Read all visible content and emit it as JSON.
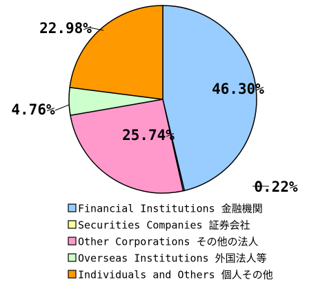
{
  "chart_data": {
    "type": "pie",
    "categories": [
      "Financial Institutions 金融機関",
      "Securities Companies 証券会社",
      "Other Corporations その他の法人",
      "Overseas Institutions 外国法人等",
      "Individuals and Others 個人その他"
    ],
    "values": [
      46.3,
      0.22,
      25.74,
      4.76,
      22.98
    ],
    "value_labels": [
      "46.30%",
      "0.22%",
      "25.74%",
      "4.76%",
      "22.98%"
    ],
    "colors": [
      "#99ccff",
      "#ffff99",
      "#ff99cc",
      "#ccffcc",
      "#ff9900"
    ]
  }
}
